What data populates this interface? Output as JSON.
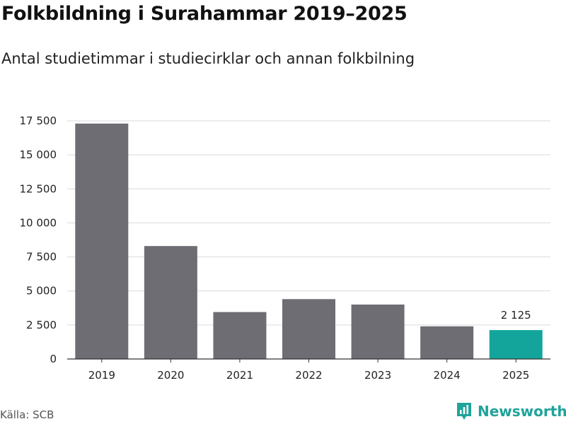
{
  "header": {
    "title": "Folkbildning i Surahammar 2019–2025",
    "subtitle": "Antal studietimmar i studiecirklar och annan folkbilning"
  },
  "footer": {
    "source": "Källa: SCB",
    "brand": "Newsworthy",
    "brand_icon": "bar-chart-logo-icon"
  },
  "colors": {
    "bar": "#6e6d74",
    "highlight": "#13a59b",
    "grid": "#d9d9d9",
    "brand": "#20a39a"
  },
  "chart_data": {
    "type": "bar",
    "categories": [
      "2019",
      "2020",
      "2021",
      "2022",
      "2023",
      "2024",
      "2025"
    ],
    "values": [
      17300,
      8300,
      3450,
      4400,
      4000,
      2400,
      2125
    ],
    "highlight_index": 6,
    "data_labels": [
      {
        "index": 6,
        "text": "2 125"
      }
    ],
    "ylim": [
      0,
      17500
    ],
    "yticks": [
      0,
      2500,
      5000,
      7500,
      10000,
      12500,
      15000,
      17500
    ],
    "ytick_labels": [
      "0",
      "2 500",
      "5 000",
      "7 500",
      "10 000",
      "12 500",
      "15 000",
      "17 500"
    ],
    "grid": true,
    "legend": "none"
  }
}
